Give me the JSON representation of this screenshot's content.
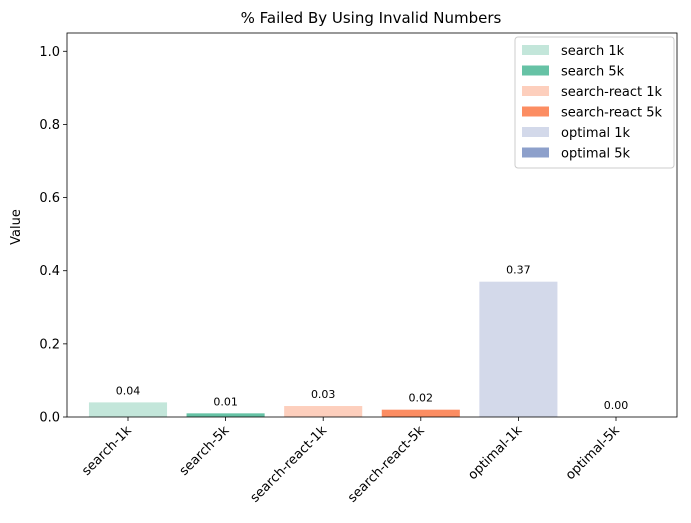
{
  "chart_data": {
    "type": "bar",
    "title": "% Failed By Using Invalid Numbers",
    "xlabel": "",
    "ylabel": "Value",
    "ylim": [
      0,
      1.05
    ],
    "yticks": [
      "0.0",
      "0.2",
      "0.4",
      "0.6",
      "0.8",
      "1.0"
    ],
    "ytick_values": [
      0,
      0.2,
      0.4,
      0.6,
      0.8,
      1.0
    ],
    "categories": [
      "search-1k",
      "search-5k",
      "search-react-1k",
      "search-react-5k",
      "optimal-1k",
      "optimal-5k"
    ],
    "values": [
      0.04,
      0.01,
      0.03,
      0.02,
      0.37,
      0.0
    ],
    "value_labels": [
      "0.04",
      "0.01",
      "0.03",
      "0.02",
      "0.37",
      "0.00"
    ],
    "colors": [
      "#c3e6da",
      "#66c2a5",
      "#fdcfbd",
      "#fc8d62",
      "#d3d9ea",
      "#8da0cb"
    ],
    "grid": false,
    "legend_position": "top-right",
    "legend": [
      {
        "name": "search 1k",
        "color": "#c3e6da"
      },
      {
        "name": "search 5k",
        "color": "#66c2a5"
      },
      {
        "name": "search-react 1k",
        "color": "#fdcfbd"
      },
      {
        "name": "search-react 5k",
        "color": "#fc8d62"
      },
      {
        "name": "optimal 1k",
        "color": "#d3d9ea"
      },
      {
        "name": "optimal 5k",
        "color": "#8da0cb"
      }
    ]
  }
}
